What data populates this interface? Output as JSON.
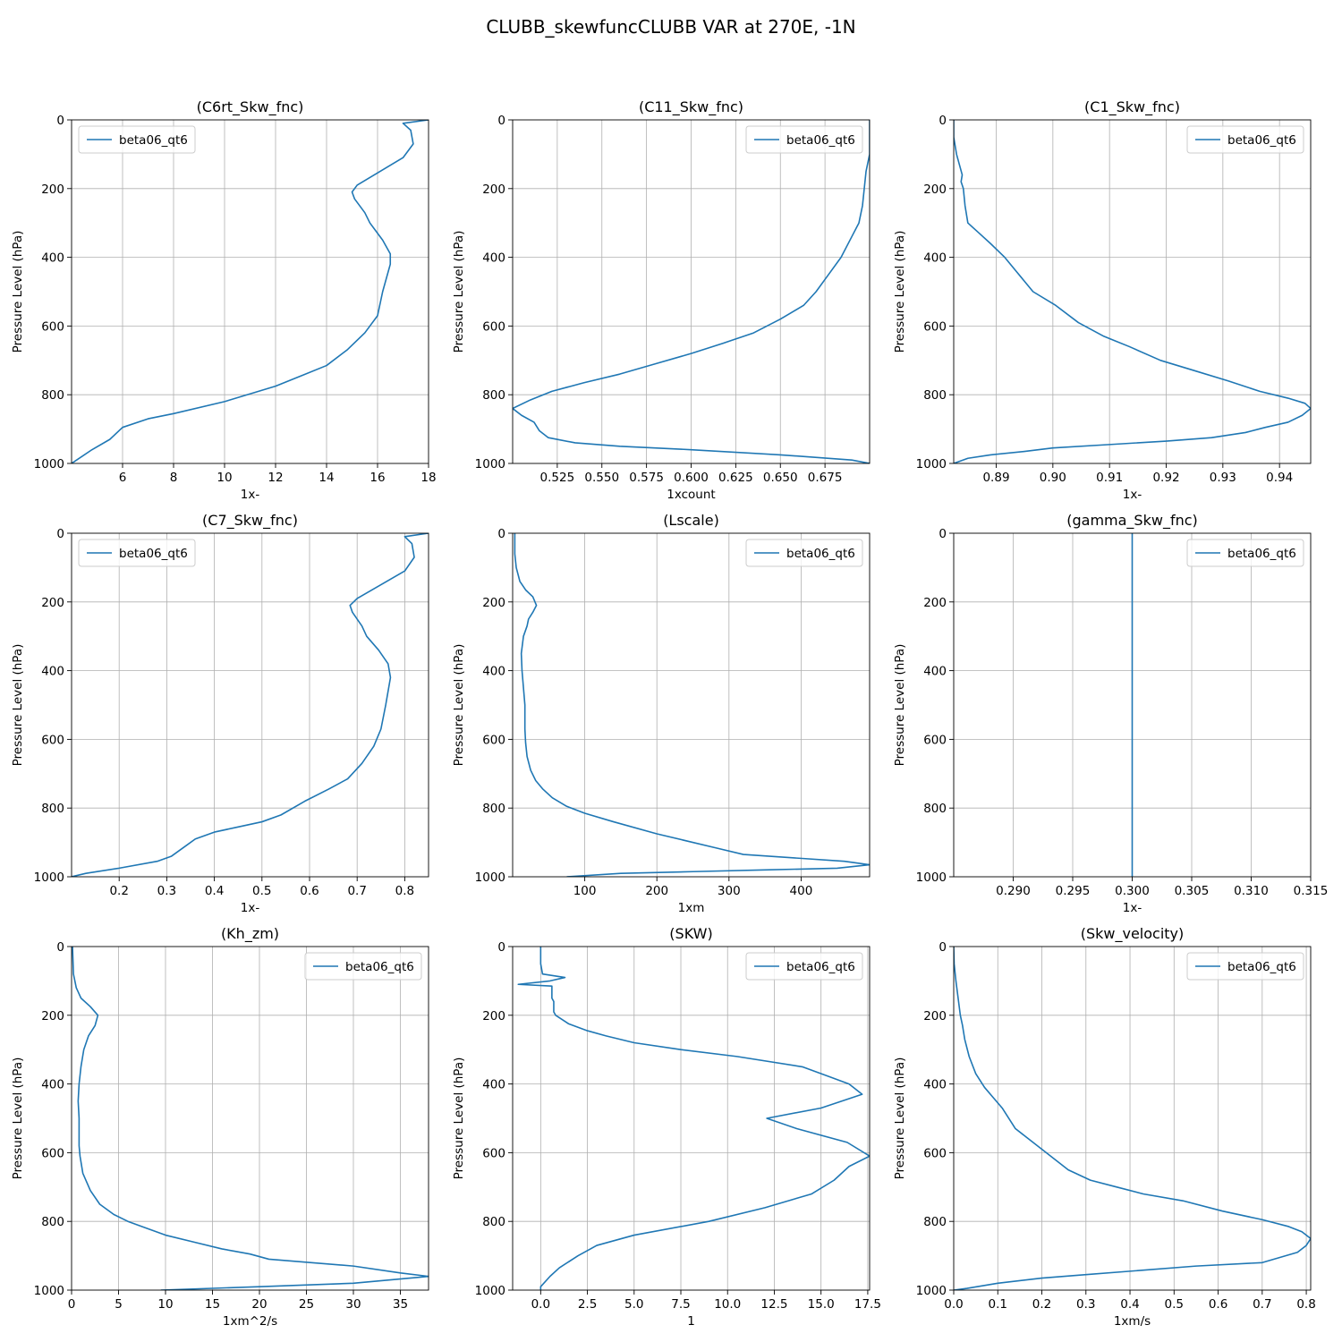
{
  "figure": {
    "title": "CLUBB_skewfuncCLUBB VAR at 270E, -1N",
    "series_color": "#1f77b4"
  },
  "chart_data": [
    {
      "type": "line",
      "title": "(C6rt_Skw_fnc)",
      "xlabel": "1x-",
      "ylabel": "Pressure Level (hPa)",
      "xlim": [
        4.0,
        18.0
      ],
      "ylim": [
        1000,
        0
      ],
      "xticks": [
        6,
        8,
        10,
        12,
        14,
        16,
        18
      ],
      "xtick_labels": [
        "6",
        "8",
        "10",
        "12",
        "14",
        "16",
        "18"
      ],
      "yticks": [
        0,
        200,
        400,
        600,
        800,
        1000
      ],
      "ytick_labels": [
        "0",
        "200",
        "400",
        "600",
        "800",
        "1000"
      ],
      "grid": true,
      "legend": "upper left",
      "series": [
        {
          "name": "beta06_qt6",
          "x": [
            18.0,
            17.0,
            17.3,
            17.4,
            17.0,
            16.1,
            15.2,
            15.0,
            15.1,
            15.5,
            15.7,
            16.2,
            16.5,
            16.5,
            16.2,
            16.0,
            15.5,
            14.8,
            14.0,
            13.0,
            12.0,
            10.0,
            8.0,
            7.0,
            6.0,
            5.5,
            4.8,
            4.0
          ],
          "y": [
            0,
            10,
            30,
            70,
            110,
            150,
            190,
            210,
            230,
            270,
            300,
            350,
            390,
            420,
            500,
            570,
            620,
            670,
            715,
            745,
            775,
            820,
            855,
            870,
            895,
            930,
            960,
            1000
          ]
        }
      ]
    },
    {
      "type": "line",
      "title": "(C11_Skw_fnc)",
      "xlabel": "1xcount",
      "ylabel": "Pressure Level (hPa)",
      "xlim": [
        0.5,
        0.7
      ],
      "ylim": [
        1000,
        0
      ],
      "xticks": [
        0.525,
        0.55,
        0.575,
        0.6,
        0.625,
        0.65,
        0.675
      ],
      "xtick_labels": [
        "0.525",
        "0.550",
        "0.575",
        "0.600",
        "0.625",
        "0.650",
        "0.675"
      ],
      "yticks": [
        0,
        200,
        400,
        600,
        800,
        1000
      ],
      "ytick_labels": [
        "0",
        "200",
        "400",
        "600",
        "800",
        "1000"
      ],
      "grid": true,
      "legend": "upper right",
      "series": [
        {
          "name": "beta06_qt6",
          "x": [
            0.7,
            0.7,
            0.698,
            0.697,
            0.696,
            0.694,
            0.69,
            0.684,
            0.677,
            0.67,
            0.663,
            0.65,
            0.635,
            0.618,
            0.6,
            0.58,
            0.56,
            0.54,
            0.522,
            0.51,
            0.5,
            0.505,
            0.512,
            0.515,
            0.52,
            0.535,
            0.56,
            0.6,
            0.65,
            0.69,
            0.7
          ],
          "y": [
            0,
            100,
            150,
            200,
            250,
            300,
            340,
            400,
            450,
            500,
            540,
            580,
            620,
            650,
            680,
            710,
            740,
            765,
            790,
            815,
            840,
            860,
            880,
            905,
            925,
            940,
            950,
            960,
            975,
            990,
            1000
          ]
        }
      ]
    },
    {
      "type": "line",
      "title": "(C1_Skw_fnc)",
      "xlabel": "1x-",
      "ylabel": "Pressure Level (hPa)",
      "xlim": [
        0.8825,
        0.9455
      ],
      "ylim": [
        1000,
        0
      ],
      "xticks": [
        0.89,
        0.9,
        0.91,
        0.92,
        0.93,
        0.94
      ],
      "xtick_labels": [
        "0.89",
        "0.90",
        "0.91",
        "0.92",
        "0.93",
        "0.94"
      ],
      "yticks": [
        0,
        200,
        400,
        600,
        800,
        1000
      ],
      "ytick_labels": [
        "0",
        "200",
        "400",
        "600",
        "800",
        "1000"
      ],
      "grid": true,
      "legend": "upper right",
      "series": [
        {
          "name": "beta06_qt6",
          "x": [
            0.8825,
            0.8825,
            0.883,
            0.8835,
            0.884,
            0.8838,
            0.8842,
            0.8845,
            0.885,
            0.887,
            0.889,
            0.8915,
            0.8935,
            0.8965,
            0.9005,
            0.9045,
            0.909,
            0.9135,
            0.919,
            0.925,
            0.931,
            0.9365,
            0.9415,
            0.9445,
            0.9455,
            0.944,
            0.9415,
            0.9375,
            0.934,
            0.928,
            0.92,
            0.91,
            0.9,
            0.895,
            0.889,
            0.885,
            0.8825
          ],
          "y": [
            0,
            50,
            100,
            130,
            160,
            180,
            200,
            250,
            300,
            330,
            360,
            400,
            440,
            500,
            540,
            590,
            630,
            660,
            700,
            730,
            760,
            790,
            810,
            825,
            840,
            860,
            880,
            895,
            910,
            925,
            935,
            945,
            955,
            965,
            975,
            985,
            1000
          ]
        }
      ]
    },
    {
      "type": "line",
      "title": "(C7_Skw_fnc)",
      "xlabel": "1x-",
      "ylabel": "Pressure Level (hPa)",
      "xlim": [
        0.1,
        0.85
      ],
      "ylim": [
        1000,
        0
      ],
      "xticks": [
        0.2,
        0.3,
        0.4,
        0.5,
        0.6,
        0.7,
        0.8
      ],
      "xtick_labels": [
        "0.2",
        "0.3",
        "0.4",
        "0.5",
        "0.6",
        "0.7",
        "0.8"
      ],
      "yticks": [
        0,
        200,
        400,
        600,
        800,
        1000
      ],
      "ytick_labels": [
        "0",
        "200",
        "400",
        "600",
        "800",
        "1000"
      ],
      "grid": true,
      "legend": "upper left",
      "series": [
        {
          "name": "beta06_qt6",
          "x": [
            0.85,
            0.8,
            0.815,
            0.82,
            0.8,
            0.75,
            0.7,
            0.685,
            0.69,
            0.71,
            0.72,
            0.745,
            0.765,
            0.77,
            0.76,
            0.75,
            0.735,
            0.71,
            0.68,
            0.64,
            0.59,
            0.54,
            0.5,
            0.45,
            0.4,
            0.36,
            0.34,
            0.31,
            0.28,
            0.2,
            0.13,
            0.1
          ],
          "y": [
            0,
            10,
            30,
            70,
            110,
            150,
            190,
            210,
            230,
            270,
            300,
            340,
            380,
            420,
            500,
            570,
            620,
            670,
            715,
            745,
            780,
            820,
            840,
            855,
            870,
            890,
            910,
            940,
            955,
            975,
            990,
            1000
          ]
        }
      ]
    },
    {
      "type": "line",
      "title": "(Lscale)",
      "xlabel": "1xm",
      "ylabel": "Pressure Level (hPa)",
      "xlim": [
        0.0,
        495.0
      ],
      "ylim": [
        1000,
        0
      ],
      "xticks": [
        100,
        200,
        300,
        400
      ],
      "xtick_labels": [
        "100",
        "200",
        "300",
        "400"
      ],
      "yticks": [
        0,
        200,
        400,
        600,
        800,
        1000
      ],
      "ytick_labels": [
        "0",
        "200",
        "400",
        "600",
        "800",
        "1000"
      ],
      "grid": true,
      "legend": "upper right",
      "series": [
        {
          "name": "beta06_qt6",
          "x": [
            3,
            3,
            5,
            10,
            18,
            28,
            33,
            28,
            22,
            20,
            15,
            12,
            13,
            15,
            17,
            17,
            18,
            20,
            25,
            32,
            42,
            55,
            75,
            100,
            140,
            200,
            280,
            320,
            460,
            495,
            450,
            350,
            250,
            150,
            75
          ],
          "y": [
            0,
            60,
            100,
            140,
            165,
            185,
            210,
            230,
            250,
            270,
            300,
            350,
            400,
            450,
            500,
            570,
            610,
            650,
            690,
            720,
            745,
            770,
            795,
            815,
            840,
            875,
            915,
            935,
            955,
            965,
            975,
            980,
            985,
            990,
            1000
          ]
        }
      ]
    },
    {
      "type": "line",
      "title": "(gamma_Skw_fnc)",
      "xlabel": "1x-",
      "ylabel": "Pressure Level (hPa)",
      "xlim": [
        0.285,
        0.315
      ],
      "ylim": [
        1000,
        0
      ],
      "xticks": [
        0.29,
        0.295,
        0.3,
        0.305,
        0.31,
        0.315
      ],
      "xtick_labels": [
        "0.290",
        "0.295",
        "0.300",
        "0.305",
        "0.310",
        "0.315"
      ],
      "yticks": [
        0,
        200,
        400,
        600,
        800,
        1000
      ],
      "ytick_labels": [
        "0",
        "200",
        "400",
        "600",
        "800",
        "1000"
      ],
      "grid": true,
      "legend": "upper right",
      "series": [
        {
          "name": "beta06_qt6",
          "x": [
            0.3,
            0.3
          ],
          "y": [
            0,
            1000
          ]
        }
      ]
    },
    {
      "type": "line",
      "title": "(Kh_zm)",
      "xlabel": "1xm^2/s",
      "ylabel": "Pressure Level (hPa)",
      "xlim": [
        0.0,
        38.0
      ],
      "ylim": [
        1000,
        0
      ],
      "xticks": [
        0,
        5,
        10,
        15,
        20,
        25,
        30,
        35
      ],
      "xtick_labels": [
        "0",
        "5",
        "10",
        "15",
        "20",
        "25",
        "30",
        "35"
      ],
      "yticks": [
        0,
        200,
        400,
        600,
        800,
        1000
      ],
      "ytick_labels": [
        "0",
        "200",
        "400",
        "600",
        "800",
        "1000"
      ],
      "grid": true,
      "legend": "upper right",
      "series": [
        {
          "name": "beta06_qt6",
          "x": [
            0.1,
            0.2,
            0.5,
            1.0,
            2.0,
            2.8,
            2.5,
            1.8,
            1.3,
            1.0,
            0.8,
            0.7,
            0.8,
            0.8,
            0.9,
            1.2,
            2.0,
            3.0,
            4.5,
            6.0,
            7.5,
            10.0,
            13.0,
            16.0,
            19.0,
            21.0,
            30.0,
            35.0,
            38.0,
            30.0,
            20.0,
            9.5
          ],
          "y": [
            0,
            80,
            120,
            150,
            175,
            200,
            230,
            260,
            300,
            350,
            400,
            450,
            500,
            580,
            610,
            660,
            710,
            750,
            780,
            800,
            815,
            840,
            860,
            880,
            895,
            910,
            930,
            950,
            960,
            980,
            990,
            1000
          ]
        }
      ]
    },
    {
      "type": "line",
      "title": "(SKW)",
      "xlabel": "1",
      "ylabel": "Pressure Level (hPa)",
      "xlim": [
        -1.5,
        17.6
      ],
      "ylim": [
        1000,
        0
      ],
      "xticks": [
        0.0,
        2.5,
        5.0,
        7.5,
        10.0,
        12.5,
        15.0,
        17.5
      ],
      "xtick_labels": [
        "0.0",
        "2.5",
        "5.0",
        "7.5",
        "10.0",
        "12.5",
        "15.0",
        "17.5"
      ],
      "yticks": [
        0,
        200,
        400,
        600,
        800,
        1000
      ],
      "ytick_labels": [
        "0",
        "200",
        "400",
        "600",
        "800",
        "1000"
      ],
      "grid": true,
      "legend": "upper right",
      "series": [
        {
          "name": "beta06_qt6",
          "x": [
            0.0,
            0.0,
            0.1,
            1.3,
            0.5,
            -1.2,
            0.6,
            0.6,
            0.7,
            0.7,
            0.8,
            1.5,
            2.5,
            3.5,
            5.0,
            7.5,
            10.5,
            14.0,
            15.5,
            16.5,
            17.2,
            15.0,
            12.1,
            13.7,
            16.4,
            17.6,
            16.5,
            15.7,
            14.5,
            12.0,
            9.0,
            5.0,
            3.0,
            2.0,
            1.0,
            0.5,
            0.0,
            0.0
          ],
          "y": [
            0,
            50,
            80,
            90,
            100,
            110,
            115,
            150,
            160,
            190,
            200,
            225,
            245,
            260,
            280,
            300,
            320,
            350,
            380,
            400,
            430,
            470,
            500,
            530,
            570,
            610,
            640,
            680,
            720,
            760,
            800,
            840,
            870,
            900,
            935,
            960,
            990,
            1000
          ]
        }
      ]
    },
    {
      "type": "line",
      "title": "(Skw_velocity)",
      "xlabel": "1xm/s",
      "ylabel": "Pressure Level (hPa)",
      "xlim": [
        0.0,
        0.81
      ],
      "ylim": [
        1000,
        0
      ],
      "xticks": [
        0.0,
        0.1,
        0.2,
        0.3,
        0.4,
        0.5,
        0.6,
        0.7,
        0.8
      ],
      "xtick_labels": [
        "0.0",
        "0.1",
        "0.2",
        "0.3",
        "0.4",
        "0.5",
        "0.6",
        "0.7",
        "0.8"
      ],
      "yticks": [
        0,
        200,
        400,
        600,
        800,
        1000
      ],
      "ytick_labels": [
        "0",
        "200",
        "400",
        "600",
        "800",
        "1000"
      ],
      "grid": true,
      "legend": "upper right",
      "series": [
        {
          "name": "beta06_qt6",
          "x": [
            0.0,
            0.001,
            0.005,
            0.01,
            0.015,
            0.02,
            0.025,
            0.035,
            0.05,
            0.07,
            0.09,
            0.11,
            0.14,
            0.18,
            0.22,
            0.26,
            0.31,
            0.37,
            0.43,
            0.52,
            0.61,
            0.7,
            0.76,
            0.79,
            0.81,
            0.8,
            0.78,
            0.74,
            0.7,
            0.55,
            0.4,
            0.3,
            0.2,
            0.1,
            0.03,
            0.0
          ],
          "y": [
            0,
            50,
            100,
            150,
            200,
            230,
            270,
            320,
            370,
            410,
            440,
            470,
            530,
            570,
            610,
            650,
            680,
            700,
            720,
            740,
            770,
            795,
            815,
            830,
            850,
            870,
            890,
            905,
            920,
            930,
            945,
            955,
            965,
            980,
            995,
            1000
          ]
        }
      ]
    }
  ]
}
